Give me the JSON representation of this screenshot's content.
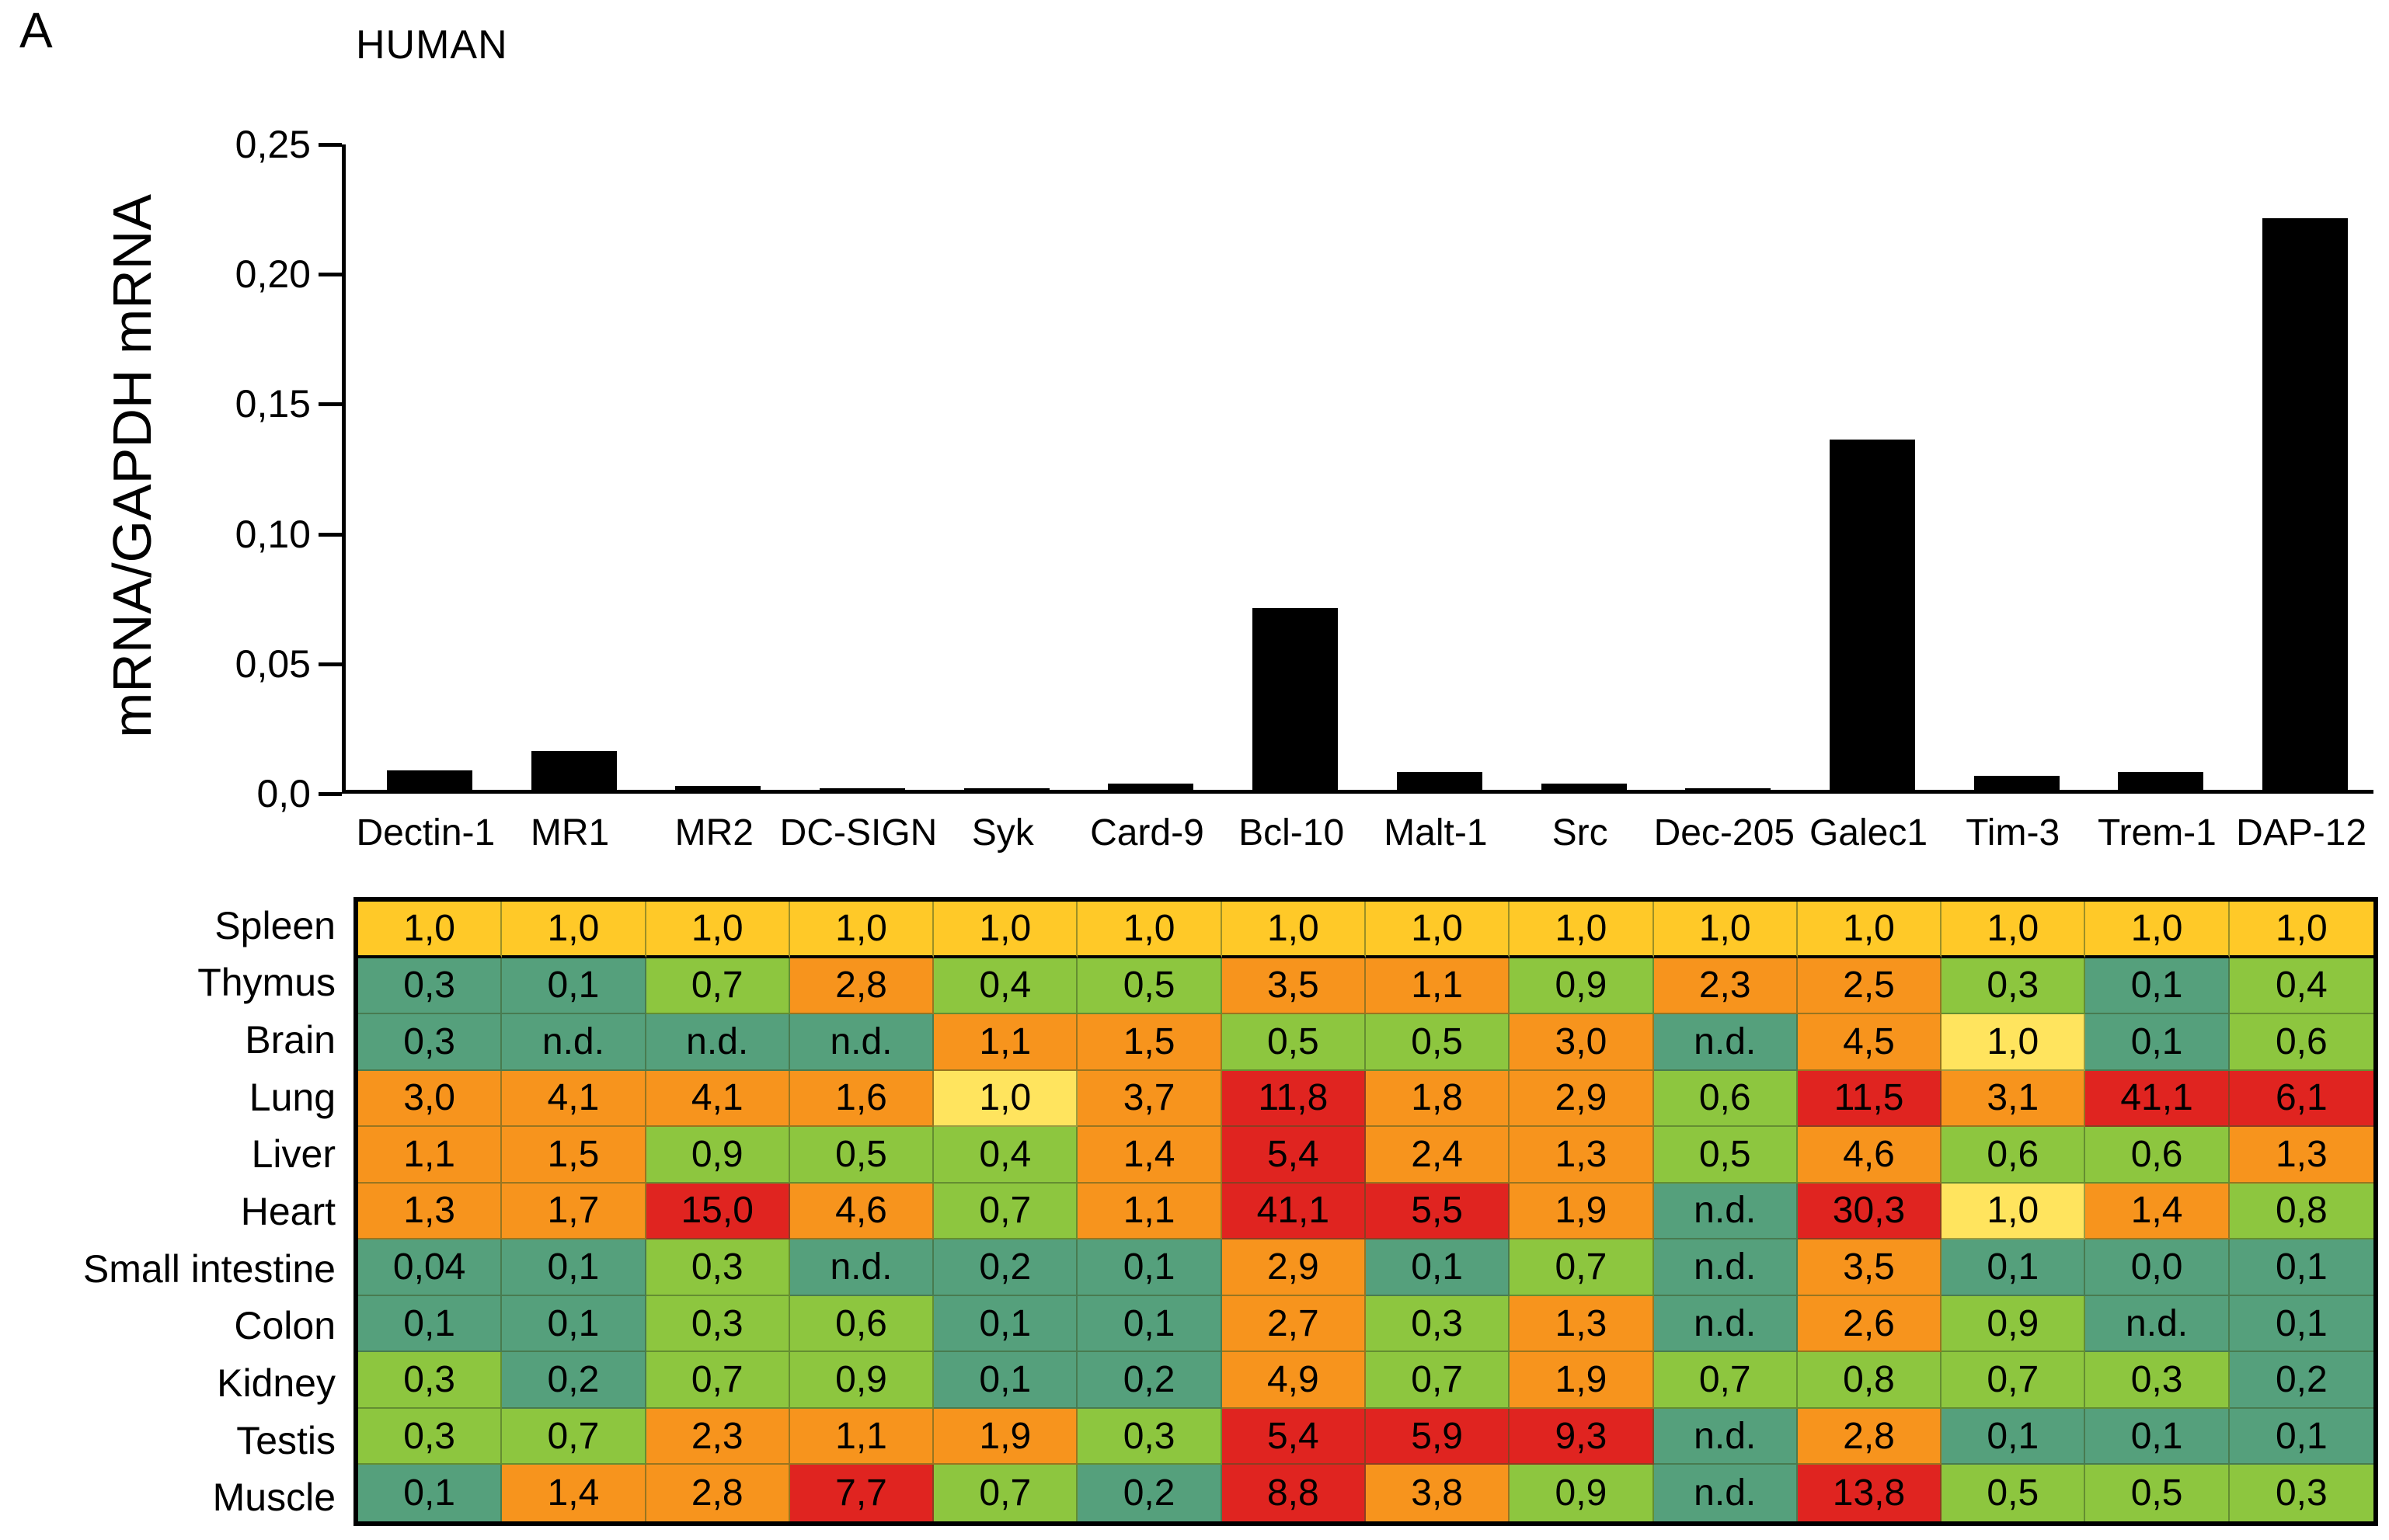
{
  "panel_label": "A",
  "chart_data": [
    {
      "type": "bar",
      "title": "HUMAN",
      "xlabel": "",
      "ylabel": "mRNA/GAPDH mRNA",
      "ylim": [
        0,
        0.25
      ],
      "grid": false,
      "bar_color": "#000000",
      "axis_color": "#000000",
      "yticks": [
        {
          "value": 0.0,
          "label": "0,0"
        },
        {
          "value": 0.05,
          "label": "0,05"
        },
        {
          "value": 0.1,
          "label": "0,10"
        },
        {
          "value": 0.15,
          "label": "0,15"
        },
        {
          "value": 0.2,
          "label": "0,20"
        },
        {
          "value": 0.25,
          "label": "0,25"
        }
      ],
      "categories": [
        "Dectin-1",
        "MR1",
        "MR2",
        "DC-SIGN",
        "Syk",
        "Card-9",
        "Bcl-10",
        "Malt-1",
        "Src",
        "Dec-205",
        "Galec1",
        "Tim-3",
        "Trem-1",
        "DAP-12"
      ],
      "values": [
        0.0075,
        0.015,
        0.0015,
        0.0006,
        0.0006,
        0.0025,
        0.07,
        0.007,
        0.0025,
        0.0006,
        0.135,
        0.0055,
        0.007,
        0.22
      ]
    },
    {
      "type": "heatmap",
      "columns": [
        "Dectin-1",
        "MR1",
        "MR2",
        "DC-SIGN",
        "Syk",
        "Card-9",
        "Bcl-10",
        "Malt-1",
        "Src",
        "Dec-205",
        "Galec1",
        "Tim-3",
        "Trem-1",
        "DAP-12"
      ],
      "palette": {
        "Y": "#FFC928",
        "y": "#FFE45E",
        "G": "#8DC63F",
        "T": "#55A07C",
        "O": "#F7941D",
        "R": "#E02420"
      },
      "rows": [
        {
          "label": "Spleen",
          "values": [
            "1,0",
            "1,0",
            "1,0",
            "1,0",
            "1,0",
            "1,0",
            "1,0",
            "1,0",
            "1,0",
            "1,0",
            "1,0",
            "1,0",
            "1,0",
            "1,0"
          ],
          "colors": [
            "Y",
            "Y",
            "Y",
            "Y",
            "Y",
            "Y",
            "Y",
            "Y",
            "Y",
            "Y",
            "Y",
            "Y",
            "Y",
            "Y"
          ]
        },
        {
          "label": "Thymus",
          "values": [
            "0,3",
            "0,1",
            "0,7",
            "2,8",
            "0,4",
            "0,5",
            "3,5",
            "1,1",
            "0,9",
            "2,3",
            "2,5",
            "0,3",
            "0,1",
            "0,4"
          ],
          "colors": [
            "T",
            "T",
            "G",
            "O",
            "G",
            "G",
            "O",
            "O",
            "G",
            "O",
            "O",
            "G",
            "T",
            "G"
          ]
        },
        {
          "label": "Brain",
          "values": [
            "0,3",
            "n.d.",
            "n.d.",
            "n.d.",
            "1,1",
            "1,5",
            "0,5",
            "0,5",
            "3,0",
            "n.d.",
            "4,5",
            "1,0",
            "0,1",
            "0,6"
          ],
          "colors": [
            "T",
            "T",
            "T",
            "T",
            "O",
            "O",
            "G",
            "G",
            "O",
            "T",
            "O",
            "y",
            "T",
            "G"
          ]
        },
        {
          "label": "Lung",
          "values": [
            "3,0",
            "4,1",
            "4,1",
            "1,6",
            "1,0",
            "3,7",
            "11,8",
            "1,8",
            "2,9",
            "0,6",
            "11,5",
            "3,1",
            "41,1",
            "6,1"
          ],
          "colors": [
            "O",
            "O",
            "O",
            "O",
            "y",
            "O",
            "R",
            "O",
            "O",
            "G",
            "R",
            "O",
            "R",
            "R"
          ]
        },
        {
          "label": "Liver",
          "values": [
            "1,1",
            "1,5",
            "0,9",
            "0,5",
            "0,4",
            "1,4",
            "5,4",
            "2,4",
            "1,3",
            "0,5",
            "4,6",
            "0,6",
            "0,6",
            "1,3"
          ],
          "colors": [
            "O",
            "O",
            "G",
            "G",
            "G",
            "O",
            "R",
            "O",
            "O",
            "G",
            "O",
            "G",
            "G",
            "O"
          ]
        },
        {
          "label": "Heart",
          "values": [
            "1,3",
            "1,7",
            "15,0",
            "4,6",
            "0,7",
            "1,1",
            "41,1",
            "5,5",
            "1,9",
            "n.d.",
            "30,3",
            "1,0",
            "1,4",
            "0,8"
          ],
          "colors": [
            "O",
            "O",
            "R",
            "O",
            "G",
            "O",
            "R",
            "R",
            "O",
            "T",
            "R",
            "y",
            "O",
            "G"
          ]
        },
        {
          "label": "Small intestine",
          "values": [
            "0,04",
            "0,1",
            "0,3",
            "n.d.",
            "0,2",
            "0,1",
            "2,9",
            "0,1",
            "0,7",
            "n.d.",
            "3,5",
            "0,1",
            "0,0",
            "0,1"
          ],
          "colors": [
            "T",
            "T",
            "G",
            "T",
            "T",
            "T",
            "O",
            "T",
            "G",
            "T",
            "O",
            "T",
            "T",
            "T"
          ]
        },
        {
          "label": "Colon",
          "values": [
            "0,1",
            "0,1",
            "0,3",
            "0,6",
            "0,1",
            "0,1",
            "2,7",
            "0,3",
            "1,3",
            "n.d.",
            "2,6",
            "0,9",
            "n.d.",
            "0,1"
          ],
          "colors": [
            "T",
            "T",
            "G",
            "G",
            "T",
            "T",
            "O",
            "G",
            "O",
            "T",
            "O",
            "G",
            "T",
            "T"
          ]
        },
        {
          "label": "Kidney",
          "values": [
            "0,3",
            "0,2",
            "0,7",
            "0,9",
            "0,1",
            "0,2",
            "4,9",
            "0,7",
            "1,9",
            "0,7",
            "0,8",
            "0,7",
            "0,3",
            "0,2"
          ],
          "colors": [
            "G",
            "T",
            "G",
            "G",
            "T",
            "T",
            "O",
            "G",
            "O",
            "G",
            "G",
            "G",
            "G",
            "T"
          ]
        },
        {
          "label": "Testis",
          "values": [
            "0,3",
            "0,7",
            "2,3",
            "1,1",
            "1,9",
            "0,3",
            "5,4",
            "5,9",
            "9,3",
            "n.d.",
            "2,8",
            "0,1",
            "0,1",
            "0,1"
          ],
          "colors": [
            "G",
            "G",
            "O",
            "O",
            "O",
            "G",
            "R",
            "R",
            "R",
            "T",
            "O",
            "T",
            "T",
            "T"
          ]
        },
        {
          "label": "Muscle",
          "values": [
            "0,1",
            "1,4",
            "2,8",
            "7,7",
            "0,7",
            "0,2",
            "8,8",
            "3,8",
            "0,9",
            "n.d.",
            "13,8",
            "0,5",
            "0,5",
            "0,3"
          ],
          "colors": [
            "T",
            "O",
            "O",
            "R",
            "G",
            "T",
            "R",
            "O",
            "G",
            "T",
            "R",
            "G",
            "G",
            "G"
          ]
        }
      ]
    }
  ]
}
